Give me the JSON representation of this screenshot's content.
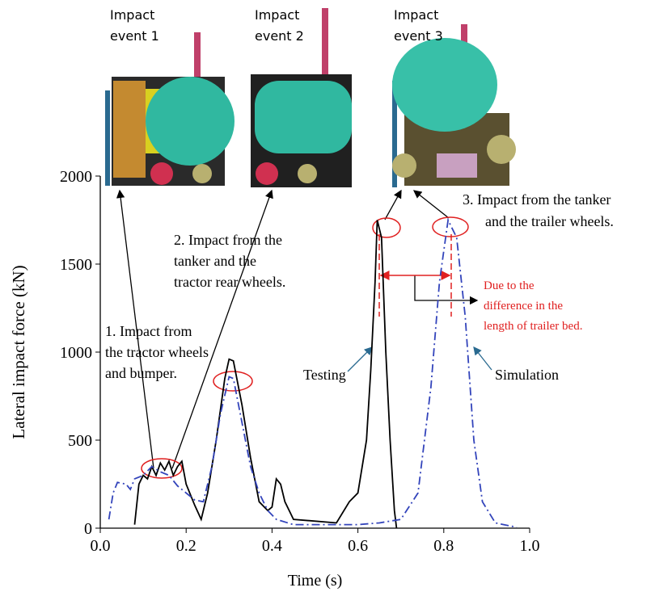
{
  "chart_data": {
    "type": "line",
    "x_label": "Time (s)",
    "y_label": "Lateral impact force (kN)",
    "xlim": [
      0,
      1
    ],
    "ylim": [
      0,
      2000
    ],
    "xticks": [
      {
        "value": 0,
        "label": "0.0"
      },
      {
        "value": 0.2,
        "label": "0.2"
      },
      {
        "value": 0.4,
        "label": "0.4"
      },
      {
        "value": 0.6,
        "label": "0.6"
      },
      {
        "value": 0.8,
        "label": "0.8"
      },
      {
        "value": 1,
        "label": "1.0"
      }
    ],
    "yticks": [
      0,
      500,
      1000,
      1500,
      2000
    ],
    "series": [
      {
        "name": "Testing",
        "color": "#000000",
        "dash": "solid",
        "x": [
          0.08,
          0.09,
          0.1,
          0.11,
          0.12,
          0.13,
          0.14,
          0.15,
          0.16,
          0.17,
          0.18,
          0.19,
          0.2,
          0.22,
          0.235,
          0.25,
          0.27,
          0.29,
          0.3,
          0.31,
          0.33,
          0.35,
          0.37,
          0.39,
          0.4,
          0.41,
          0.42,
          0.43,
          0.45,
          0.55,
          0.58,
          0.6,
          0.62,
          0.63,
          0.64,
          0.645,
          0.655,
          0.665,
          0.675,
          0.685,
          0.69
        ],
        "values": [
          20,
          250,
          300,
          280,
          350,
          300,
          370,
          330,
          380,
          300,
          350,
          380,
          250,
          130,
          50,
          200,
          500,
          850,
          960,
          950,
          700,
          400,
          150,
          100,
          120,
          280,
          250,
          150,
          50,
          30,
          150,
          200,
          500,
          900,
          1400,
          1750,
          1650,
          1000,
          500,
          100,
          0
        ]
      },
      {
        "name": "Simulation",
        "color": "#3344bb",
        "dash": "dashdot",
        "x": [
          0.02,
          0.03,
          0.04,
          0.06,
          0.07,
          0.08,
          0.1,
          0.12,
          0.14,
          0.16,
          0.18,
          0.2,
          0.22,
          0.24,
          0.26,
          0.28,
          0.3,
          0.31,
          0.33,
          0.35,
          0.37,
          0.39,
          0.41,
          0.45,
          0.6,
          0.65,
          0.7,
          0.74,
          0.77,
          0.79,
          0.81,
          0.83,
          0.85,
          0.87,
          0.89,
          0.92,
          0.97
        ],
        "values": [
          50,
          200,
          260,
          250,
          220,
          280,
          300,
          350,
          320,
          300,
          240,
          200,
          160,
          150,
          350,
          650,
          860,
          850,
          600,
          350,
          200,
          100,
          50,
          20,
          20,
          30,
          50,
          200,
          800,
          1400,
          1750,
          1650,
          1200,
          500,
          150,
          30,
          5
        ]
      }
    ],
    "panels": [
      {
        "lines": [
          "Impact",
          "event 1"
        ]
      },
      {
        "lines": [
          "Impact",
          "event 2"
        ]
      },
      {
        "lines": [
          "Impact",
          "event 3"
        ]
      }
    ],
    "annotations": [
      {
        "lines": [
          "1. Impact from",
          "the tractor wheels",
          "and bumper."
        ]
      },
      {
        "lines": [
          "2. Impact from the",
          "tanker and the",
          "tractor rear wheels."
        ]
      },
      {
        "lines": [
          "3. Impact from the tanker",
          "and the trailer wheels."
        ]
      },
      {
        "lines": [
          "Due to the",
          "difference in the",
          "length of trailer bed."
        ]
      }
    ]
  }
}
